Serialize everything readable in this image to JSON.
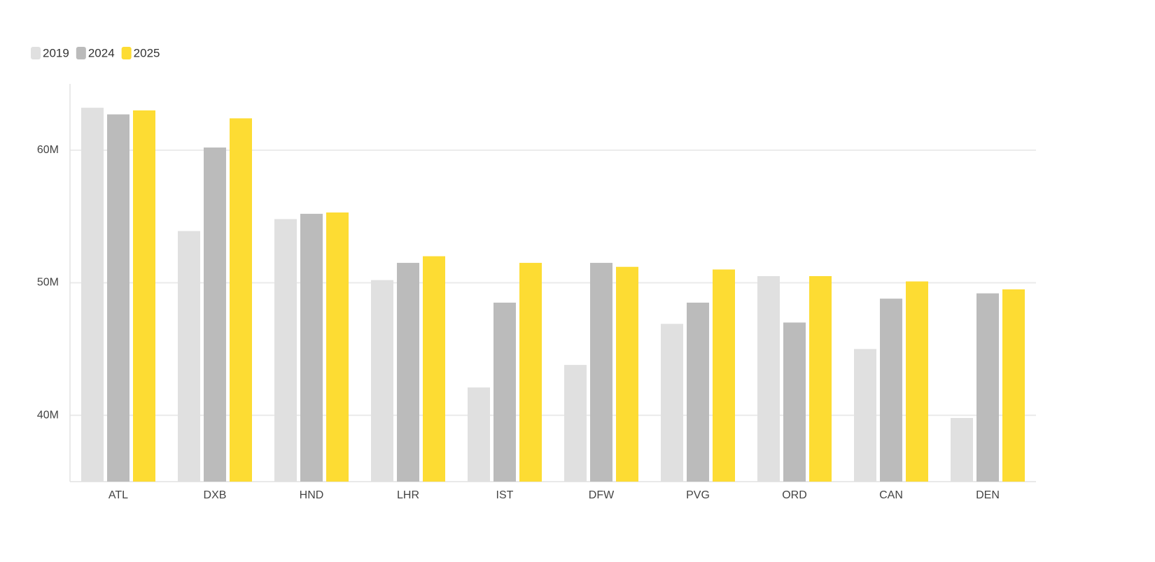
{
  "chart_data": {
    "type": "bar",
    "categories": [
      "ATL",
      "DXB",
      "HND",
      "LHR",
      "IST",
      "DFW",
      "PVG",
      "ORD",
      "CAN",
      "DEN"
    ],
    "series": [
      {
        "name": "2019",
        "color": "#e0e0e0",
        "values": [
          63.2,
          53.9,
          54.8,
          50.2,
          42.1,
          43.8,
          46.9,
          50.5,
          45.0,
          39.8
        ]
      },
      {
        "name": "2024",
        "color": "#bbbbbb",
        "values": [
          62.7,
          60.2,
          55.2,
          51.5,
          48.5,
          51.5,
          48.5,
          47.0,
          48.8,
          49.2
        ]
      },
      {
        "name": "2025",
        "color": "#fddc33",
        "values": [
          63.0,
          62.4,
          55.3,
          52.0,
          51.5,
          51.2,
          51.0,
          50.5,
          50.1,
          49.5
        ]
      }
    ],
    "ylim": [
      35,
      65
    ],
    "yticks": [
      {
        "value": 40,
        "label": "40M"
      },
      {
        "value": 50,
        "label": "50M"
      },
      {
        "value": 60,
        "label": "60M"
      }
    ],
    "grid": true
  }
}
